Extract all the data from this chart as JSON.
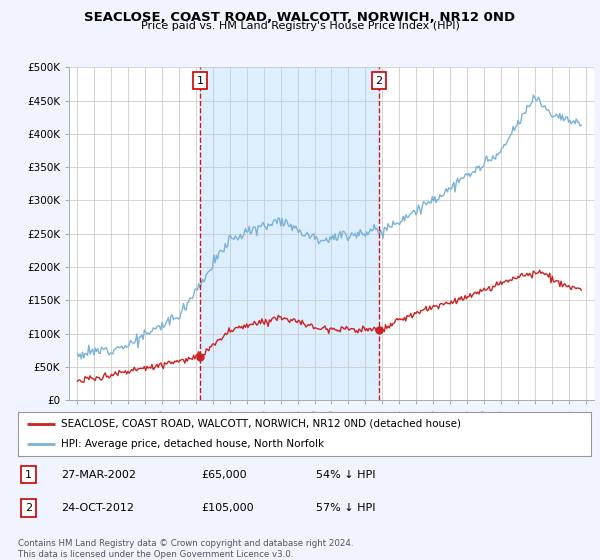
{
  "title": "SEACLOSE, COAST ROAD, WALCOTT, NORWICH, NR12 0ND",
  "subtitle": "Price paid vs. HM Land Registry's House Price Index (HPI)",
  "background_color": "#f0f4ff",
  "plot_bg_color": "#ffffff",
  "shade_color": "#ddeeff",
  "ylim": [
    0,
    500000
  ],
  "yticks": [
    0,
    50000,
    100000,
    150000,
    200000,
    250000,
    300000,
    350000,
    400000,
    450000,
    500000
  ],
  "ytick_labels": [
    "£0",
    "£50K",
    "£100K",
    "£150K",
    "£200K",
    "£250K",
    "£300K",
    "£350K",
    "£400K",
    "£450K",
    "£500K"
  ],
  "hpi_color": "#7ab3d8",
  "price_color": "#cc2222",
  "marker1_x": 2002.25,
  "marker1_label": "1",
  "marker1_price": 65000,
  "marker1_date_str": "27-MAR-2002",
  "marker1_pct": "54% ↓ HPI",
  "marker2_x": 2012.8,
  "marker2_label": "2",
  "marker2_price": 105000,
  "marker2_date_str": "24-OCT-2012",
  "marker2_pct": "57% ↓ HPI",
  "legend_label_price": "SEACLOSE, COAST ROAD, WALCOTT, NORWICH, NR12 0ND (detached house)",
  "legend_label_hpi": "HPI: Average price, detached house, North Norfolk",
  "footer": "Contains HM Land Registry data © Crown copyright and database right 2024.\nThis data is licensed under the Open Government Licence v3.0.",
  "xlim_start": 1994.5,
  "xlim_end": 2025.5
}
